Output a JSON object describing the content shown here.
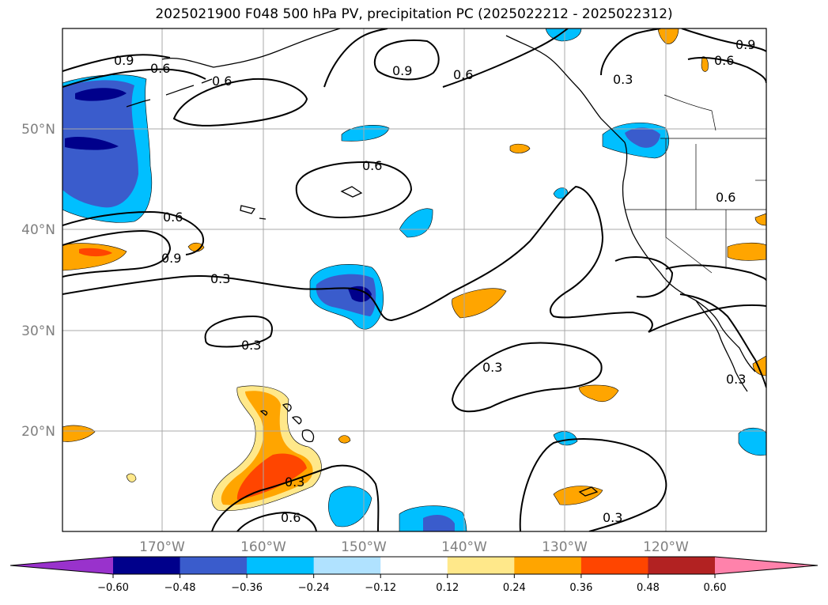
{
  "title": "2025021900 F048 500 hPa PV, precipitation PC (2025022212 - 2025022312)",
  "map": {
    "lat_labels": [
      "50°N",
      "40°N",
      "30°N",
      "20°N"
    ],
    "lon_labels": [
      "170°W",
      "160°W",
      "150°W",
      "140°W",
      "130°W",
      "120°W"
    ],
    "contour_labels": [
      "0.9",
      "0.6",
      "0.6",
      "0.9",
      "0.6",
      "0.3",
      "0.6",
      "0.9",
      "0.6",
      "0.6",
      "0.9",
      "0.3",
      "0.3",
      "0.3",
      "0.6",
      "0.3",
      "0.6",
      "0.3",
      "0.3"
    ]
  },
  "colorbar": {
    "ticks": [
      "−0.60",
      "−0.48",
      "−0.36",
      "−0.24",
      "−0.12",
      "0.12",
      "0.24",
      "0.36",
      "0.48",
      "0.60"
    ],
    "colors": [
      "#9932cc",
      "#00008b",
      "#3a5ccc",
      "#00bfff",
      "#b0e2ff",
      "#ffffff",
      "#ffe88a",
      "#ffa500",
      "#ff4500",
      "#b22222",
      "#ff82ab"
    ]
  }
}
